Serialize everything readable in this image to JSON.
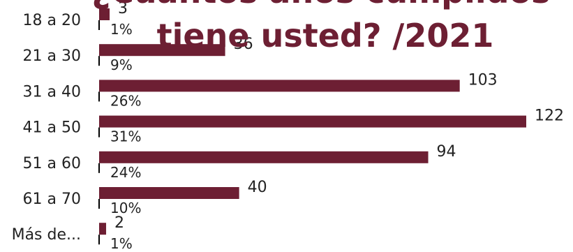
{
  "chart_data": {
    "type": "bar",
    "orientation": "horizontal",
    "title_lines": [
      "¿Cuántos años cumplidos",
      "tiene usted? /2021"
    ],
    "categories": [
      "18 a 20",
      "21 a 30",
      "31 a 40",
      "41 a 50",
      "51 a 60",
      "61 a 70",
      "Más de..."
    ],
    "values": [
      3,
      36,
      103,
      122,
      94,
      40,
      2
    ],
    "percent_labels": [
      "1%",
      "9%",
      "26%",
      "31%",
      "24%",
      "10%",
      "1%"
    ],
    "xlim": [
      0,
      122
    ],
    "grid": false,
    "legend": "none",
    "colors": {
      "bar": "#6d1f33",
      "title": "#6d1f33",
      "text": "#222222",
      "axis": "#000000"
    }
  }
}
